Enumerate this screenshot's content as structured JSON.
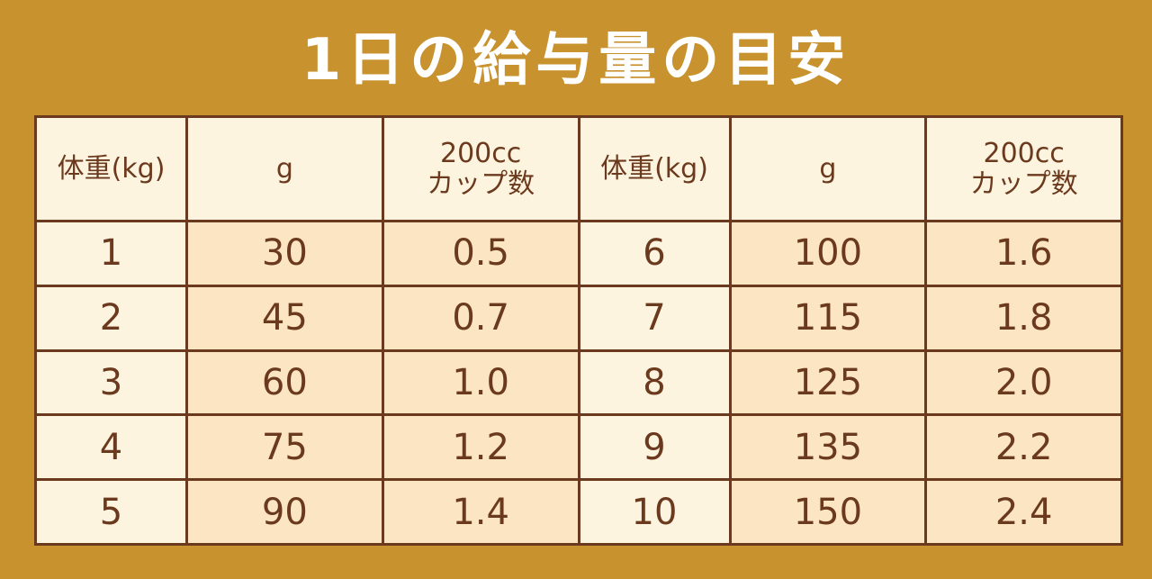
{
  "title": "1日の給与量の目安",
  "tables": [
    {
      "header": [
        "体重(kg)",
        "g",
        "200cc\nカップ数"
      ],
      "rows": [
        [
          "1",
          "30",
          "0.5"
        ],
        [
          "2",
          "45",
          "0.7"
        ],
        [
          "3",
          "60",
          "1.0"
        ],
        [
          "4",
          "75",
          "1.2"
        ],
        [
          "5",
          "90",
          "1.4"
        ]
      ]
    },
    {
      "header": [
        "体重(kg)",
        "g",
        "200cc\nカップ数"
      ],
      "rows": [
        [
          "6",
          "100",
          "1.6"
        ],
        [
          "7",
          "115",
          "1.8"
        ],
        [
          "8",
          "125",
          "2.0"
        ],
        [
          "9",
          "135",
          "2.2"
        ],
        [
          "10",
          "150",
          "2.4"
        ]
      ]
    }
  ]
}
